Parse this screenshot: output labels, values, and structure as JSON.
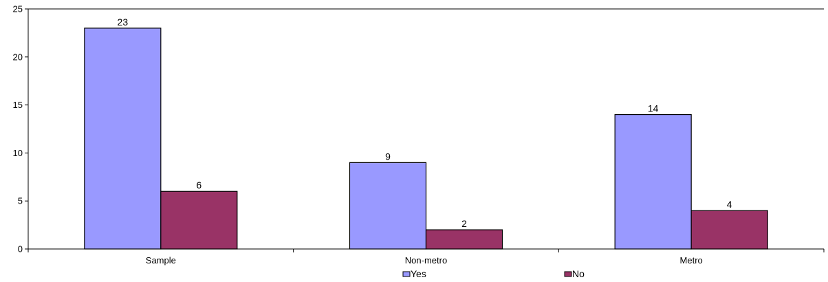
{
  "chart_data": {
    "type": "bar",
    "categories": [
      "Sample",
      "Non-metro",
      "Metro"
    ],
    "series": [
      {
        "name": "Yes",
        "values": [
          23,
          9,
          14
        ],
        "color": "#9999ff"
      },
      {
        "name": "No",
        "values": [
          6,
          2,
          4
        ],
        "color": "#993366"
      }
    ],
    "ylim": [
      0,
      25
    ],
    "yticks": [
      0,
      5,
      10,
      15,
      20,
      25
    ],
    "grid": false,
    "legend": "bottom",
    "data_labels": true
  }
}
